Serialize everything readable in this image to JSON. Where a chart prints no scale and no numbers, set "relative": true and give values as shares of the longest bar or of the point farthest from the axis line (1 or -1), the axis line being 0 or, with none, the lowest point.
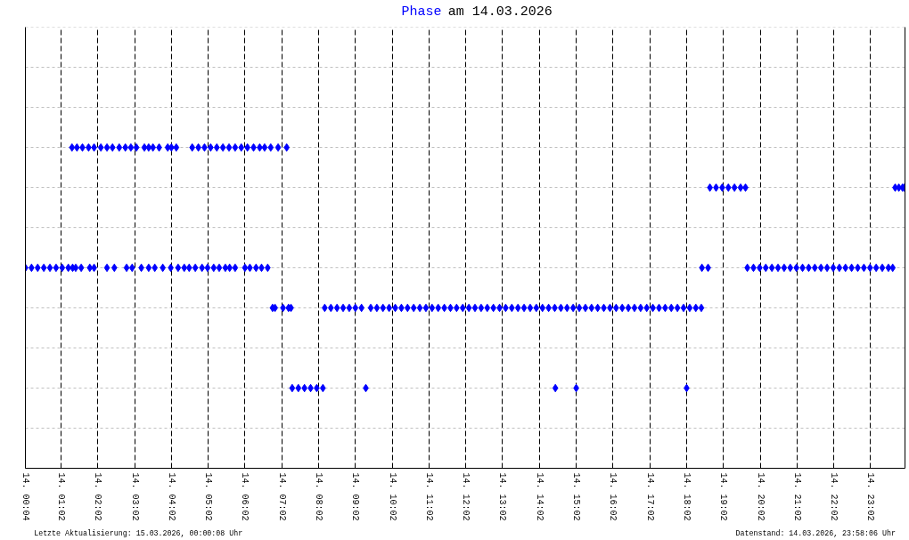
{
  "chart_data": {
    "type": "scatter",
    "title": "Phase am 14.03.2026",
    "annotations": [
      "Letzte Aktualisierung: 15.03.2026, 00:00:08 Uhr",
      "Datenstand: 14.03.2026, 23:58:06 Uhr"
    ],
    "relative": true,
    "marker": "diamond",
    "grid": "x",
    "xlim": [
      "2026-03-14T00:04",
      "2026-03-14T23:58"
    ],
    "xticks": [
      {
        "value": "2026-03-14T00:04",
        "label": "14. 00:04"
      },
      {
        "value": "2026-03-14T01:02",
        "label": "14. 01:02"
      },
      {
        "value": "2026-03-14T02:02",
        "label": "14. 02:02"
      },
      {
        "value": "2026-03-14T03:02",
        "label": "14. 03:02"
      },
      {
        "value": "2026-03-14T04:02",
        "label": "14. 04:02"
      },
      {
        "value": "2026-03-14T05:02",
        "label": "14. 05:02"
      },
      {
        "value": "2026-03-14T06:02",
        "label": "14. 06:02"
      },
      {
        "value": "2026-03-14T07:02",
        "label": "14. 07:02"
      },
      {
        "value": "2026-03-14T08:02",
        "label": "14. 08:02"
      },
      {
        "value": "2026-03-14T09:02",
        "label": "14. 09:02"
      },
      {
        "value": "2026-03-14T10:02",
        "label": "14. 10:02"
      },
      {
        "value": "2026-03-14T11:02",
        "label": "14. 11:02"
      },
      {
        "value": "2026-03-14T12:02",
        "label": "14. 12:02"
      },
      {
        "value": "2026-03-14T13:02",
        "label": "14. 13:02"
      },
      {
        "value": "2026-03-14T14:02",
        "label": "14. 14:02"
      },
      {
        "value": "2026-03-14T15:02",
        "label": "14. 15:02"
      },
      {
        "value": "2026-03-14T16:02",
        "label": "14. 16:02"
      },
      {
        "value": "2026-03-14T17:02",
        "label": "14. 17:02"
      },
      {
        "value": "2026-03-14T18:02",
        "label": "14. 18:02"
      },
      {
        "value": "2026-03-14T19:02",
        "label": "14. 19:02"
      },
      {
        "value": "2026-03-14T20:02",
        "label": "14. 20:02"
      },
      {
        "value": "2026-03-14T21:02",
        "label": "14. 21:02"
      },
      {
        "value": "2026-03-14T22:02",
        "label": "14. 22:02"
      },
      {
        "value": "2026-03-14T23:02",
        "label": "14. 23:02"
      }
    ],
    "ref_lines": [
      {
        "axis": "y",
        "value": 0.125,
        "color": "#c0c0c0",
        "line_style": "dashed"
      },
      {
        "axis": "y",
        "value": 0.25,
        "color": "#c0c0c0",
        "line_style": "dashed"
      },
      {
        "axis": "y",
        "value": 0.375,
        "color": "#c0c0c0",
        "line_style": "dashed"
      },
      {
        "axis": "y",
        "value": 0.5,
        "color": "#c0c0c0",
        "line_style": "dashed"
      },
      {
        "axis": "y",
        "value": 0.625,
        "color": "#c0c0c0",
        "line_style": "dashed"
      },
      {
        "axis": "y",
        "value": 0.75,
        "color": "#c0c0c0",
        "line_style": "dashed"
      },
      {
        "axis": "y",
        "value": 0.875,
        "color": "#c0c0c0",
        "line_style": "dashed"
      },
      {
        "axis": "y",
        "value": 1,
        "color": "#c0c0c0",
        "line_style": "dashed"
      },
      {
        "axis": "y",
        "value": 1.125,
        "color": "#c0c0c0",
        "line_style": "dashed"
      },
      {
        "axis": "y",
        "value": 1.25,
        "color": "#c0c0c0",
        "line_style": "dashed"
      },
      {
        "axis": "y",
        "value": 1.375,
        "color": "#c0c0c0",
        "line_style": "dashed"
      }
    ],
    "series": [
      {
        "color": "#0000ff",
        "x": [
          "2026-03-14T01:20",
          "2026-03-14T01:28",
          "2026-03-14T01:37",
          "2026-03-14T01:47",
          "2026-03-14T01:56",
          "2026-03-14T02:07",
          "2026-03-14T02:17",
          "2026-03-14T02:26",
          "2026-03-14T02:37",
          "2026-03-14T02:47",
          "2026-03-14T02:56",
          "2026-03-14T03:05",
          "2026-03-14T03:18",
          "2026-03-14T03:25",
          "2026-03-14T03:32",
          "2026-03-14T03:42",
          "2026-03-14T03:56",
          "2026-03-14T04:02",
          "2026-03-14T04:10",
          "2026-03-14T04:36",
          "2026-03-14T04:46",
          "2026-03-14T04:56",
          "2026-03-14T05:06",
          "2026-03-14T05:16",
          "2026-03-14T05:26",
          "2026-03-14T05:36",
          "2026-03-14T05:46",
          "2026-03-14T05:56",
          "2026-03-14T06:06",
          "2026-03-14T06:16",
          "2026-03-14T06:26",
          "2026-03-14T06:34",
          "2026-03-14T06:44",
          "2026-03-14T06:56",
          "2026-03-14T07:10",
          "2026-03-14T00:04",
          "2026-03-14T00:14",
          "2026-03-14T00:24",
          "2026-03-14T00:34",
          "2026-03-14T00:44",
          "2026-03-14T00:54",
          "2026-03-14T01:04",
          "2026-03-14T01:14",
          "2026-03-14T01:21",
          "2026-03-14T01:26",
          "2026-03-14T01:35",
          "2026-03-14T01:49",
          "2026-03-14T01:56",
          "2026-03-14T02:17",
          "2026-03-14T02:29",
          "2026-03-14T02:49",
          "2026-03-14T02:58",
          "2026-03-14T03:13",
          "2026-03-14T03:25",
          "2026-03-14T03:35",
          "2026-03-14T03:48",
          "2026-03-14T04:01",
          "2026-03-14T04:13",
          "2026-03-14T04:23",
          "2026-03-14T04:31",
          "2026-03-14T04:41",
          "2026-03-14T04:52",
          "2026-03-14T05:01",
          "2026-03-14T05:11",
          "2026-03-14T05:20",
          "2026-03-14T05:30",
          "2026-03-14T05:37",
          "2026-03-14T05:46",
          "2026-03-14T06:02",
          "2026-03-14T06:10",
          "2026-03-14T06:20",
          "2026-03-14T06:29",
          "2026-03-14T06:39",
          "2026-03-14T06:47",
          "2026-03-14T06:51",
          "2026-03-14T07:04",
          "2026-03-14T07:13",
          "2026-03-14T07:17",
          "2026-03-14T08:12",
          "2026-03-14T08:22",
          "2026-03-14T08:32",
          "2026-03-14T08:42",
          "2026-03-14T08:52",
          "2026-03-14T09:02",
          "2026-03-14T09:12",
          "2026-03-14T09:27",
          "2026-03-14T09:37",
          "2026-03-14T09:47",
          "2026-03-14T09:57",
          "2026-03-14T10:07",
          "2026-03-14T10:17",
          "2026-03-14T10:27",
          "2026-03-14T10:37",
          "2026-03-14T10:47",
          "2026-03-14T10:57",
          "2026-03-14T11:07",
          "2026-03-14T11:17",
          "2026-03-14T11:27",
          "2026-03-14T11:37",
          "2026-03-14T11:47",
          "2026-03-14T11:57",
          "2026-03-14T12:07",
          "2026-03-14T12:17",
          "2026-03-14T12:27",
          "2026-03-14T12:37",
          "2026-03-14T12:47",
          "2026-03-14T12:57",
          "2026-03-14T13:07",
          "2026-03-14T13:17",
          "2026-03-14T13:27",
          "2026-03-14T13:37",
          "2026-03-14T13:47",
          "2026-03-14T13:57",
          "2026-03-14T14:07",
          "2026-03-14T14:17",
          "2026-03-14T14:27",
          "2026-03-14T14:37",
          "2026-03-14T14:47",
          "2026-03-14T14:57",
          "2026-03-14T15:07",
          "2026-03-14T15:17",
          "2026-03-14T15:27",
          "2026-03-14T15:37",
          "2026-03-14T15:47",
          "2026-03-14T15:57",
          "2026-03-14T16:07",
          "2026-03-14T16:17",
          "2026-03-14T16:27",
          "2026-03-14T16:37",
          "2026-03-14T16:47",
          "2026-03-14T16:57",
          "2026-03-14T17:07",
          "2026-03-14T17:17",
          "2026-03-14T17:27",
          "2026-03-14T17:37",
          "2026-03-14T17:47",
          "2026-03-14T17:57",
          "2026-03-14T18:07",
          "2026-03-14T18:17",
          "2026-03-14T18:26",
          "2026-03-14T07:19",
          "2026-03-14T07:29",
          "2026-03-14T07:39",
          "2026-03-14T07:49",
          "2026-03-14T07:59",
          "2026-03-14T08:09",
          "2026-03-14T09:19",
          "2026-03-14T14:28",
          "2026-03-14T15:02",
          "2026-03-14T18:02",
          "2026-03-14T18:27",
          "2026-03-14T18:37",
          "2026-03-14T19:41",
          "2026-03-14T19:51",
          "2026-03-14T20:01",
          "2026-03-14T20:11",
          "2026-03-14T20:21",
          "2026-03-14T20:31",
          "2026-03-14T20:41",
          "2026-03-14T20:51",
          "2026-03-14T21:01",
          "2026-03-14T21:11",
          "2026-03-14T21:21",
          "2026-03-14T21:31",
          "2026-03-14T21:41",
          "2026-03-14T21:51",
          "2026-03-14T22:01",
          "2026-03-14T22:11",
          "2026-03-14T22:21",
          "2026-03-14T22:31",
          "2026-03-14T22:41",
          "2026-03-14T22:51",
          "2026-03-14T23:01",
          "2026-03-14T23:11",
          "2026-03-14T23:21",
          "2026-03-14T23:31",
          "2026-03-14T23:38",
          "2026-03-14T18:40",
          "2026-03-14T18:50",
          "2026-03-14T19:00",
          "2026-03-14T19:10",
          "2026-03-14T19:20",
          "2026-03-14T19:30",
          "2026-03-14T19:38",
          "2026-03-14T23:42",
          "2026-03-14T23:48",
          "2026-03-14T23:54",
          "2026-03-14T23:57"
        ],
        "values": [
          1,
          1,
          1,
          1,
          1,
          1,
          1,
          1,
          1,
          1,
          1,
          1,
          1,
          1,
          1,
          1,
          1,
          1,
          1,
          1,
          1,
          1,
          1,
          1,
          1,
          1,
          1,
          1,
          1,
          1,
          1,
          1,
          1,
          1,
          1,
          0.625,
          0.625,
          0.625,
          0.625,
          0.625,
          0.625,
          0.625,
          0.625,
          0.625,
          0.625,
          0.625,
          0.625,
          0.625,
          0.625,
          0.625,
          0.625,
          0.625,
          0.625,
          0.625,
          0.625,
          0.625,
          0.625,
          0.625,
          0.625,
          0.625,
          0.625,
          0.625,
          0.625,
          0.625,
          0.625,
          0.625,
          0.625,
          0.625,
          0.625,
          0.625,
          0.625,
          0.625,
          0.625,
          0.5,
          0.5,
          0.5,
          0.5,
          0.5,
          0.5,
          0.5,
          0.5,
          0.5,
          0.5,
          0.5,
          0.5,
          0.5,
          0.5,
          0.5,
          0.5,
          0.5,
          0.5,
          0.5,
          0.5,
          0.5,
          0.5,
          0.5,
          0.5,
          0.5,
          0.5,
          0.5,
          0.5,
          0.5,
          0.5,
          0.5,
          0.5,
          0.5,
          0.5,
          0.5,
          0.5,
          0.5,
          0.5,
          0.5,
          0.5,
          0.5,
          0.5,
          0.5,
          0.5,
          0.5,
          0.5,
          0.5,
          0.5,
          0.5,
          0.5,
          0.5,
          0.5,
          0.5,
          0.5,
          0.5,
          0.5,
          0.5,
          0.5,
          0.5,
          0.5,
          0.5,
          0.5,
          0.5,
          0.5,
          0.5,
          0.5,
          0.5,
          0.25,
          0.25,
          0.25,
          0.25,
          0.25,
          0.25,
          0.25,
          0.25,
          0.25,
          0.25,
          0.625,
          0.625,
          0.625,
          0.625,
          0.625,
          0.625,
          0.625,
          0.625,
          0.625,
          0.625,
          0.625,
          0.625,
          0.625,
          0.625,
          0.625,
          0.625,
          0.625,
          0.625,
          0.625,
          0.625,
          0.625,
          0.625,
          0.625,
          0.625,
          0.625,
          0.625,
          0.625,
          0.875,
          0.875,
          0.875,
          0.875,
          0.875,
          0.875,
          0.875,
          0.875,
          0.875,
          0.875,
          0.875
        ]
      }
    ]
  }
}
